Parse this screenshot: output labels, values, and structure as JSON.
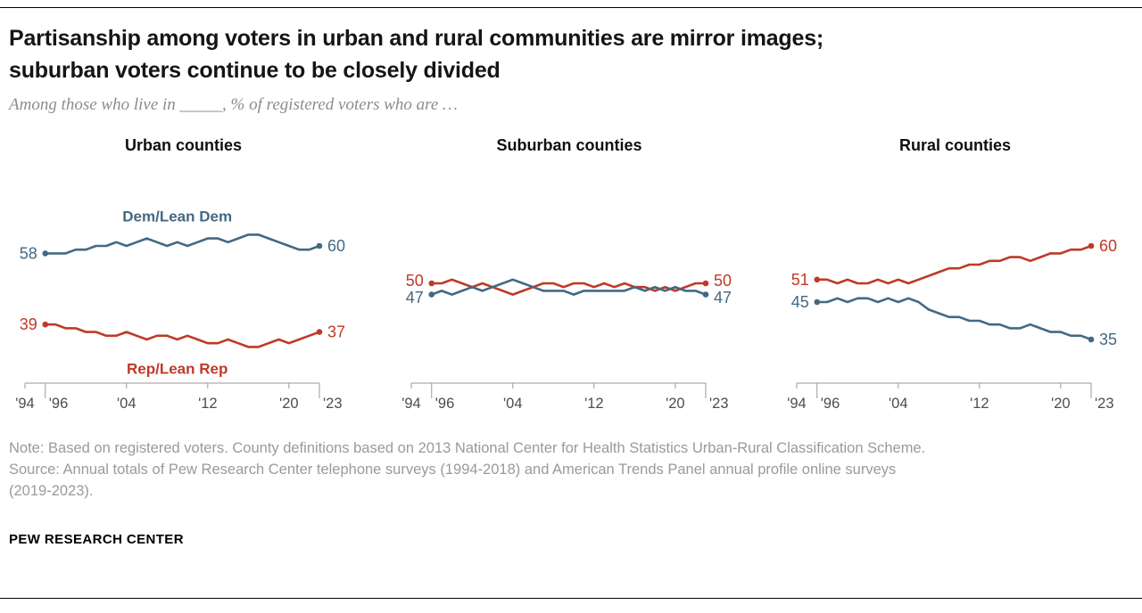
{
  "header": {
    "title_line1": "Partisanship among voters in urban and rural communities are mirror images;",
    "title_line2": "suburban voters continue to be closely divided",
    "subtitle": "Among those who live in _____, % of registered voters who are …"
  },
  "colors": {
    "dem": "#436983",
    "rep": "#bf3927",
    "axis": "#9a9a9a"
  },
  "axis": {
    "start_year": 1994,
    "end_year": 2023,
    "ticks": [
      {
        "year": 1994,
        "label": "'94",
        "bracket": false
      },
      {
        "year": 1996,
        "label": "'96",
        "bracket": true
      },
      {
        "year": 2004,
        "label": "'04",
        "bracket": false
      },
      {
        "year": 2012,
        "label": "'12",
        "bracket": false
      },
      {
        "year": 2020,
        "label": "'20",
        "bracket": false
      },
      {
        "year": 2023,
        "label": "'23",
        "bracket": true
      }
    ]
  },
  "chart_data": [
    {
      "id": "urban",
      "type": "line",
      "title": "Urban counties",
      "xlabel": "",
      "ylabel": "% of registered voters",
      "ylim": [
        30,
        65
      ],
      "x_tick_labels": [
        "'94",
        "'96",
        "'04",
        "'12",
        "'20",
        "'23"
      ],
      "x": [
        1996,
        1997,
        1998,
        1999,
        2000,
        2001,
        2002,
        2003,
        2004,
        2005,
        2006,
        2007,
        2008,
        2009,
        2010,
        2011,
        2012,
        2013,
        2014,
        2015,
        2016,
        2017,
        2018,
        2019,
        2020,
        2021,
        2022,
        2023
      ],
      "series": [
        {
          "name": "Dem/Lean Dem",
          "party": "dem",
          "show_name_label": true,
          "name_label_position": "above",
          "start_label": "58",
          "end_label": "60",
          "values": [
            58,
            58,
            58,
            59,
            59,
            60,
            60,
            61,
            60,
            61,
            62,
            61,
            60,
            61,
            60,
            61,
            62,
            62,
            61,
            62,
            63,
            63,
            62,
            61,
            60,
            59,
            59,
            60
          ]
        },
        {
          "name": "Rep/Lean Rep",
          "party": "rep",
          "show_name_label": true,
          "name_label_position": "below",
          "start_label": "39",
          "end_label": "37",
          "values": [
            39,
            39,
            38,
            38,
            37,
            37,
            36,
            36,
            37,
            36,
            35,
            36,
            36,
            35,
            36,
            35,
            34,
            34,
            35,
            34,
            33,
            33,
            34,
            35,
            34,
            35,
            36,
            37
          ]
        }
      ]
    },
    {
      "id": "suburban",
      "type": "line",
      "title": "Suburban counties",
      "xlabel": "",
      "ylabel": "% of registered voters",
      "ylim": [
        30,
        65
      ],
      "x_tick_labels": [
        "'94",
        "'96",
        "'04",
        "'12",
        "'20",
        "'23"
      ],
      "x": [
        1996,
        1997,
        1998,
        1999,
        2000,
        2001,
        2002,
        2003,
        2004,
        2005,
        2006,
        2007,
        2008,
        2009,
        2010,
        2011,
        2012,
        2013,
        2014,
        2015,
        2016,
        2017,
        2018,
        2019,
        2020,
        2021,
        2022,
        2023
      ],
      "series": [
        {
          "name": "Rep/Lean Rep",
          "party": "rep",
          "show_name_label": false,
          "name_label_position": "below",
          "start_label": "50",
          "end_label": "50",
          "values": [
            50,
            50,
            51,
            50,
            49,
            50,
            49,
            48,
            47,
            48,
            49,
            50,
            50,
            49,
            50,
            50,
            49,
            50,
            49,
            50,
            49,
            49,
            48,
            49,
            48,
            49,
            50,
            50
          ]
        },
        {
          "name": "Dem/Lean Dem",
          "party": "dem",
          "show_name_label": false,
          "name_label_position": "above",
          "start_label": "47",
          "end_label": "47",
          "values": [
            47,
            48,
            47,
            48,
            49,
            48,
            49,
            50,
            51,
            50,
            49,
            48,
            48,
            48,
            47,
            48,
            48,
            48,
            48,
            48,
            49,
            48,
            49,
            48,
            49,
            48,
            48,
            47
          ]
        }
      ]
    },
    {
      "id": "rural",
      "type": "line",
      "title": "Rural counties",
      "xlabel": "",
      "ylabel": "% of registered voters",
      "ylim": [
        30,
        65
      ],
      "x_tick_labels": [
        "'94",
        "'96",
        "'04",
        "'12",
        "'20",
        "'23"
      ],
      "x": [
        1996,
        1997,
        1998,
        1999,
        2000,
        2001,
        2002,
        2003,
        2004,
        2005,
        2006,
        2007,
        2008,
        2009,
        2010,
        2011,
        2012,
        2013,
        2014,
        2015,
        2016,
        2017,
        2018,
        2019,
        2020,
        2021,
        2022,
        2023
      ],
      "series": [
        {
          "name": "Rep/Lean Rep",
          "party": "rep",
          "show_name_label": false,
          "name_label_position": "above",
          "start_label": "51",
          "end_label": "60",
          "values": [
            51,
            51,
            50,
            51,
            50,
            50,
            51,
            50,
            51,
            50,
            51,
            52,
            53,
            54,
            54,
            55,
            55,
            56,
            56,
            57,
            57,
            56,
            57,
            58,
            58,
            59,
            59,
            60
          ]
        },
        {
          "name": "Dem/Lean Dem",
          "party": "dem",
          "show_name_label": false,
          "name_label_position": "below",
          "start_label": "45",
          "end_label": "35",
          "values": [
            45,
            45,
            46,
            45,
            46,
            46,
            45,
            46,
            45,
            46,
            45,
            43,
            42,
            41,
            41,
            40,
            40,
            39,
            39,
            38,
            38,
            39,
            38,
            37,
            37,
            36,
            36,
            35
          ]
        }
      ]
    }
  ],
  "note": {
    "line1": "Note: Based on registered voters. County definitions based on 2013 National Center for Health Statistics Urban-Rural Classification Scheme.",
    "line2": "Source: Annual totals of Pew Research Center telephone surveys (1994-2018) and American Trends Panel annual profile online surveys",
    "line3": "(2019-2023)."
  },
  "footer": "PEW RESEARCH CENTER"
}
